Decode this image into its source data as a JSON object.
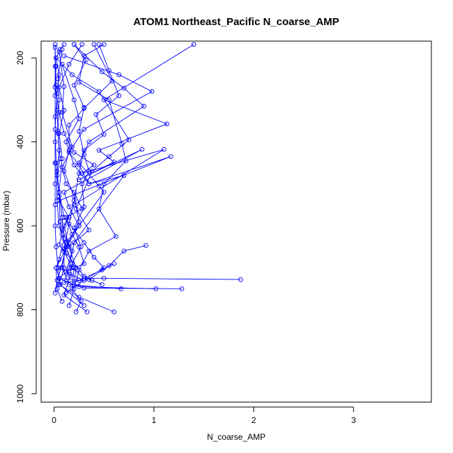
{
  "chart_data": {
    "type": "scatter",
    "title": "ATOM1 Northeast_Pacific N_coarse_AMP",
    "xlabel": "N_coarse_AMP",
    "ylabel": "Pressure (mbar)",
    "xlim": [
      -0.13,
      3.78
    ],
    "ylim": [
      1020,
      160
    ],
    "y_reversed": true,
    "x_ticks": [
      0,
      1,
      2,
      3
    ],
    "y_ticks": [
      200,
      400,
      600,
      800,
      1000
    ],
    "series_color": "#0000ff",
    "profiles": [
      [
        [
          0.01,
          760
        ],
        [
          0.03,
          730
        ],
        [
          0.07,
          700
        ],
        [
          0.12,
          650
        ],
        [
          0.05,
          600
        ],
        [
          0.03,
          540
        ],
        [
          0.02,
          450
        ],
        [
          0.01,
          370
        ],
        [
          0.03,
          285
        ],
        [
          0.05,
          240
        ],
        [
          0.02,
          200
        ],
        [
          0.06,
          180
        ],
        [
          0.1,
          168
        ]
      ],
      [
        [
          0.15,
          790
        ],
        [
          0.2,
          750
        ],
        [
          0.25,
          705
        ],
        [
          0.35,
          660
        ],
        [
          0.62,
          625
        ],
        [
          0.45,
          560
        ],
        [
          0.5,
          500
        ],
        [
          0.72,
          445
        ],
        [
          0.68,
          405
        ],
        [
          0.55,
          300
        ],
        [
          0.25,
          258
        ],
        [
          0.3,
          195
        ],
        [
          0.5,
          168
        ]
      ],
      [
        [
          0.33,
          805
        ],
        [
          0.1,
          765
        ],
        [
          0.16,
          720
        ],
        [
          0.18,
          690
        ],
        [
          0.27,
          650
        ],
        [
          0.2,
          605
        ],
        [
          0.3,
          555
        ],
        [
          0.28,
          500
        ],
        [
          0.35,
          470
        ],
        [
          0.3,
          430
        ],
        [
          0.25,
          375
        ],
        [
          0.3,
          318
        ],
        [
          0.2,
          265
        ],
        [
          0.32,
          205
        ],
        [
          0.2,
          168
        ]
      ],
      [
        [
          0.6,
          805
        ],
        [
          0.25,
          770
        ],
        [
          0.05,
          740
        ],
        [
          0.1,
          700
        ],
        [
          0.1,
          655
        ],
        [
          0.15,
          595
        ],
        [
          0.2,
          540
        ],
        [
          0.25,
          475
        ],
        [
          0.3,
          420
        ],
        [
          0.5,
          382
        ],
        [
          0.42,
          335
        ],
        [
          0.65,
          290
        ],
        [
          0.55,
          230
        ],
        [
          0.45,
          168
        ]
      ],
      [
        [
          0.22,
          805
        ],
        [
          0.27,
          780
        ],
        [
          0.18,
          750
        ],
        [
          0.2,
          700
        ],
        [
          0.12,
          650
        ],
        [
          0.25,
          590
        ],
        [
          0.2,
          530
        ],
        [
          0.1,
          470
        ],
        [
          0.15,
          420
        ],
        [
          0.15,
          360
        ],
        [
          0.3,
          320
        ],
        [
          0.58,
          255
        ],
        [
          0.4,
          168
        ]
      ],
      [
        [
          0.12,
          760
        ],
        [
          0.3,
          730
        ],
        [
          0.5,
          700
        ],
        [
          0.4,
          675
        ],
        [
          0.3,
          640
        ],
        [
          0.1,
          580
        ],
        [
          0.05,
          520
        ],
        [
          0.08,
          440
        ],
        [
          0.05,
          380
        ],
        [
          0.1,
          325
        ],
        [
          0.05,
          270
        ],
        [
          0.15,
          215
        ],
        [
          0.28,
          168
        ]
      ],
      [
        [
          1.87,
          728
        ],
        [
          0.5,
          725
        ],
        [
          0.3,
          725
        ],
        [
          0.18,
          700
        ],
        [
          0.1,
          660
        ],
        [
          0.35,
          610
        ],
        [
          0.22,
          560
        ],
        [
          0.38,
          470
        ],
        [
          0.55,
          435
        ],
        [
          0.75,
          395
        ],
        [
          0.45,
          280
        ],
        [
          0.18,
          240
        ],
        [
          0.02,
          200
        ]
      ],
      [
        [
          1.28,
          750
        ],
        [
          0.3,
          748
        ],
        [
          0.2,
          740
        ],
        [
          0.22,
          700
        ],
        [
          0.15,
          650
        ],
        [
          0.1,
          600
        ],
        [
          0.2,
          550
        ],
        [
          1.1,
          418
        ],
        [
          0.28,
          475
        ],
        [
          0.4,
          455
        ],
        [
          0.2,
          425
        ],
        [
          0.1,
          380
        ],
        [
          0.05,
          330
        ],
        [
          0.01,
          270
        ],
        [
          0.02,
          220
        ]
      ],
      [
        [
          1.02,
          750
        ],
        [
          0.25,
          745
        ],
        [
          0.05,
          725
        ],
        [
          0.12,
          710
        ],
        [
          0.18,
          660
        ],
        [
          0.08,
          610
        ],
        [
          0.15,
          580
        ],
        [
          0.05,
          540
        ],
        [
          1.17,
          435
        ],
        [
          0.35,
          500
        ],
        [
          0.2,
          455
        ],
        [
          0.12,
          400
        ],
        [
          0.25,
          345
        ],
        [
          0.2,
          300
        ],
        [
          0.08,
          215
        ]
      ],
      [
        [
          0.67,
          750
        ],
        [
          0.15,
          740
        ],
        [
          0.08,
          700
        ],
        [
          0.12,
          640
        ],
        [
          0.25,
          600
        ],
        [
          0.15,
          555
        ],
        [
          0.1,
          520
        ],
        [
          0.88,
          418
        ],
        [
          0.25,
          490
        ],
        [
          0.6,
          448
        ],
        [
          0.45,
          420
        ],
        [
          1.13,
          357
        ],
        [
          0.5,
          300
        ],
        [
          1.4,
          168
        ]
      ],
      [
        [
          0.92,
          647
        ],
        [
          0.7,
          660
        ],
        [
          0.55,
          695
        ],
        [
          0.35,
          728
        ],
        [
          0.1,
          735
        ],
        [
          0.15,
          700
        ],
        [
          0.2,
          640
        ],
        [
          0.7,
          480
        ],
        [
          0.35,
          500
        ],
        [
          0.25,
          455
        ],
        [
          0.15,
          425
        ],
        [
          0.3,
          370
        ],
        [
          0.98,
          280
        ],
        [
          0.65,
          240
        ],
        [
          0.1,
          195
        ]
      ],
      [
        [
          0.6,
          690
        ],
        [
          0.48,
          705
        ],
        [
          0.25,
          730
        ],
        [
          0.05,
          725
        ],
        [
          0.02,
          700
        ],
        [
          0.15,
          640
        ],
        [
          0.25,
          600
        ],
        [
          0.5,
          520
        ],
        [
          0.45,
          505
        ],
        [
          0.25,
          450
        ],
        [
          0.35,
          400
        ],
        [
          0.9,
          315
        ],
        [
          0.7,
          272
        ],
        [
          0.48,
          233
        ],
        [
          0.2,
          168
        ]
      ],
      [
        [
          0.3,
          790
        ],
        [
          0.06,
          740
        ],
        [
          0.04,
          700
        ],
        [
          0.02,
          650
        ],
        [
          0.01,
          600
        ],
        [
          0.01,
          550
        ],
        [
          0.01,
          500
        ],
        [
          0.01,
          450
        ],
        [
          0.01,
          400
        ],
        [
          0.01,
          340
        ],
        [
          0.01,
          290
        ],
        [
          0.01,
          220
        ],
        [
          0.01,
          168
        ]
      ],
      [
        [
          0.08,
          780
        ],
        [
          0.03,
          750
        ],
        [
          0.02,
          700
        ],
        [
          0.05,
          680
        ],
        [
          0.1,
          630
        ],
        [
          0.08,
          580
        ],
        [
          0.05,
          520
        ],
        [
          0.03,
          470
        ],
        [
          0.05,
          420
        ],
        [
          0.04,
          380
        ],
        [
          0.03,
          325
        ],
        [
          0.02,
          265
        ],
        [
          0.01,
          175
        ]
      ],
      [
        [
          0.48,
          740
        ],
        [
          0.38,
          730
        ],
        [
          0.3,
          720
        ],
        [
          0.12,
          665
        ],
        [
          0.05,
          645
        ],
        [
          0.08,
          620
        ],
        [
          0.06,
          590
        ],
        [
          0.05,
          530
        ],
        [
          0.03,
          480
        ],
        [
          0.06,
          440
        ],
        [
          0.04,
          375
        ],
        [
          0.05,
          300
        ],
        [
          0.04,
          250
        ],
        [
          0.08,
          180
        ]
      ],
      [
        [
          0.3,
          730
        ],
        [
          0.16,
          715
        ],
        [
          0.12,
          710
        ],
        [
          0.3,
          690
        ],
        [
          0.25,
          650
        ],
        [
          0.18,
          620
        ],
        [
          0.12,
          580
        ],
        [
          0.28,
          560
        ],
        [
          0.2,
          520
        ],
        [
          0.12,
          500
        ],
        [
          0.08,
          460
        ],
        [
          0.18,
          412
        ],
        [
          0.08,
          330
        ],
        [
          0.1,
          268
        ],
        [
          0.05,
          185
        ]
      ]
    ]
  }
}
